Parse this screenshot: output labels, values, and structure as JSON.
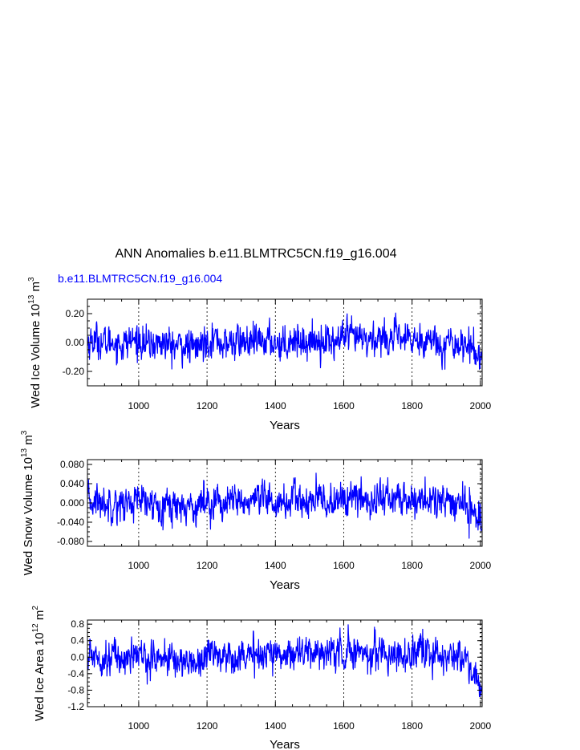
{
  "figure": {
    "title": "ANN Anomalies b.e11.BLMTRC5CN.f19_g16.004",
    "case_label": "b.e11.BLMTRC5CN.f19_g16.004",
    "case_color": "#0000ff"
  },
  "chart_data": [
    {
      "type": "line",
      "ylabel_text": "Wed Ice Volume 10",
      "ylabel_exp": "13",
      "ylabel_unit": " m",
      "ylabel_unit_exp": "3",
      "xlabel": "Years",
      "xlim": [
        850,
        2005
      ],
      "ylim": [
        -0.3,
        0.3
      ],
      "x_ticks": [
        1000,
        1200,
        1400,
        1600,
        1800,
        2000
      ],
      "y_ticks": [
        0.2,
        0.0,
        -0.2
      ],
      "y_tick_labels": [
        "0.20",
        "0.00",
        "-0.20"
      ],
      "grid": "vertical dashed at x ticks",
      "series_color": "#0000ff",
      "series": [
        {
          "x": [
            850,
            875,
            900,
            925,
            950,
            975,
            1000,
            1025,
            1050,
            1075,
            1100,
            1125,
            1150,
            1175,
            1200,
            1225,
            1250,
            1275,
            1300,
            1325,
            1350,
            1375,
            1400,
            1425,
            1450,
            1475,
            1500,
            1525,
            1550,
            1575,
            1600,
            1625,
            1650,
            1675,
            1700,
            1725,
            1750,
            1775,
            1800,
            1825,
            1850,
            1875,
            1900,
            1925,
            1950,
            1975,
            2000
          ],
          "values": [
            0.0,
            0.02,
            -0.01,
            0.01,
            -0.02,
            0.01,
            0.02,
            -0.02,
            -0.01,
            0.0,
            -0.03,
            -0.02,
            -0.04,
            -0.03,
            0.02,
            0.03,
            -0.02,
            0.0,
            0.01,
            -0.01,
            0.0,
            0.02,
            0.0,
            -0.01,
            0.03,
            0.01,
            0.0,
            0.02,
            0.01,
            0.0,
            0.04,
            0.03,
            0.02,
            0.01,
            0.04,
            0.03,
            0.03,
            0.02,
            0.01,
            0.03,
            0.02,
            0.0,
            -0.01,
            0.0,
            -0.01,
            -0.04,
            -0.1
          ]
        }
      ]
    },
    {
      "type": "line",
      "ylabel_text": "Wed Snow Volume 10",
      "ylabel_exp": "13",
      "ylabel_unit": " m",
      "ylabel_unit_exp": "3",
      "xlabel": "Years",
      "xlim": [
        850,
        2005
      ],
      "ylim": [
        -0.09,
        0.09
      ],
      "x_ticks": [
        1000,
        1200,
        1400,
        1600,
        1800,
        2000
      ],
      "y_ticks": [
        0.08,
        0.04,
        0.0,
        -0.04,
        -0.08
      ],
      "y_tick_labels": [
        "0.080",
        "0.040",
        "0.000",
        "-0.040",
        "-0.080"
      ],
      "grid": "vertical dashed at x ticks",
      "series_color": "#0000ff",
      "series": [
        {
          "x": [
            850,
            875,
            900,
            925,
            950,
            975,
            1000,
            1025,
            1050,
            1075,
            1100,
            1125,
            1150,
            1175,
            1200,
            1225,
            1250,
            1275,
            1300,
            1325,
            1350,
            1375,
            1400,
            1425,
            1450,
            1475,
            1500,
            1525,
            1550,
            1575,
            1600,
            1625,
            1650,
            1675,
            1700,
            1725,
            1750,
            1775,
            1800,
            1825,
            1850,
            1875,
            1900,
            1925,
            1950,
            1975,
            2000
          ],
          "values": [
            0.0,
            0.005,
            -0.002,
            0.003,
            -0.004,
            0.002,
            0.004,
            -0.004,
            -0.002,
            0.0,
            -0.006,
            -0.004,
            -0.008,
            -0.005,
            0.005,
            0.007,
            -0.003,
            0.0,
            0.003,
            -0.002,
            0.0,
            0.005,
            0.001,
            -0.001,
            0.007,
            0.003,
            0.0,
            0.005,
            0.003,
            0.001,
            0.01,
            0.008,
            0.006,
            0.003,
            0.012,
            0.009,
            0.008,
            0.006,
            0.004,
            0.008,
            0.006,
            0.0,
            -0.002,
            0.0,
            -0.003,
            -0.012,
            -0.04
          ]
        }
      ]
    },
    {
      "type": "line",
      "ylabel_text": "Wed Ice Area 10",
      "ylabel_exp": "12",
      "ylabel_unit": " m",
      "ylabel_unit_exp": "2",
      "xlabel": "Years",
      "xlim": [
        850,
        2005
      ],
      "ylim": [
        -1.2,
        0.9
      ],
      "x_ticks": [
        1000,
        1200,
        1400,
        1600,
        1800,
        2000
      ],
      "y_ticks": [
        0.8,
        0.4,
        0.0,
        -0.4,
        -0.8,
        -1.2
      ],
      "y_tick_labels": [
        "0.8",
        "0.4",
        "0.0",
        "-0.4",
        "-0.8",
        "-1.2"
      ],
      "grid": "vertical dashed at x ticks",
      "series_color": "#0000ff",
      "series": [
        {
          "x": [
            850,
            875,
            900,
            925,
            950,
            975,
            1000,
            1025,
            1050,
            1075,
            1100,
            1125,
            1150,
            1175,
            1200,
            1225,
            1250,
            1275,
            1300,
            1325,
            1350,
            1375,
            1400,
            1425,
            1450,
            1475,
            1500,
            1525,
            1550,
            1575,
            1600,
            1625,
            1650,
            1675,
            1700,
            1725,
            1750,
            1775,
            1800,
            1825,
            1850,
            1875,
            1900,
            1925,
            1950,
            1975,
            2000
          ],
          "values": [
            0.0,
            0.08,
            -0.04,
            0.06,
            -0.06,
            0.04,
            0.06,
            -0.04,
            -0.02,
            0.0,
            -0.1,
            -0.08,
            -0.14,
            -0.1,
            0.1,
            0.12,
            -0.02,
            0.04,
            0.08,
            0.0,
            0.06,
            0.12,
            0.08,
            0.06,
            0.16,
            0.12,
            0.08,
            0.14,
            0.12,
            0.08,
            0.16,
            0.14,
            0.12,
            0.08,
            0.14,
            0.1,
            0.08,
            0.06,
            0.04,
            0.1,
            0.08,
            0.02,
            0.0,
            0.02,
            -0.02,
            -0.2,
            -0.9
          ]
        }
      ]
    }
  ]
}
